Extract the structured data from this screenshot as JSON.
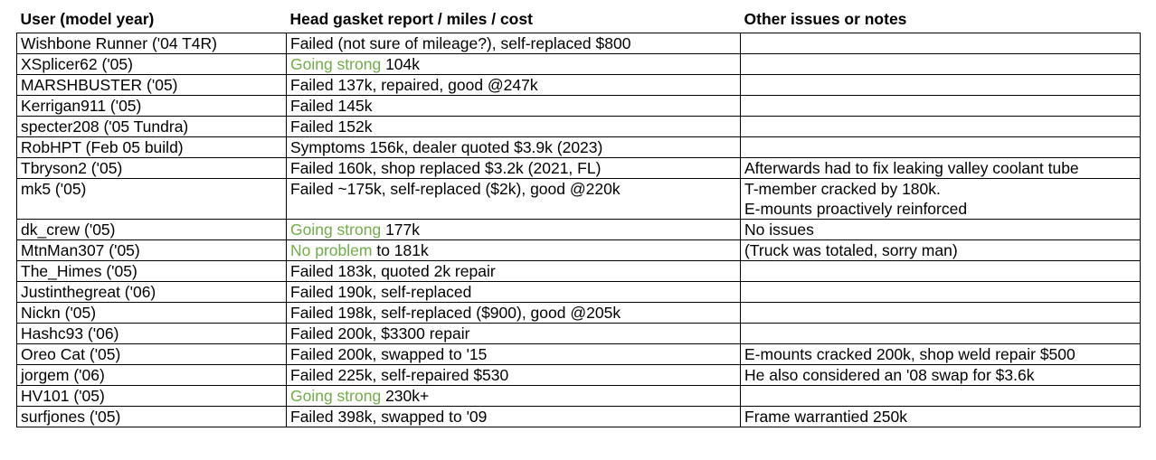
{
  "table": {
    "headers": [
      "User (model year)",
      "Head gasket report / miles / cost",
      "Other issues or notes"
    ],
    "rows": [
      {
        "user": "Wishbone Runner ('04 T4R)",
        "report_good": "",
        "report": "Failed (not sure of mileage?), self-replaced $800",
        "notes": []
      },
      {
        "user": "XSplicer62 ('05)",
        "report_good": "Going strong",
        "report": " 104k",
        "notes": []
      },
      {
        "user": "MARSHBUSTER ('05)",
        "report_good": "",
        "report": "Failed 137k, repaired, good @247k",
        "notes": []
      },
      {
        "user": "Kerrigan911 ('05)",
        "report_good": "",
        "report": "Failed 145k",
        "notes": []
      },
      {
        "user": "specter208 ('05 Tundra)",
        "report_good": "",
        "report": "Failed 152k",
        "notes": []
      },
      {
        "user": "RobHPT (Feb 05 build)",
        "report_good": "",
        "report": "Symptoms 156k, dealer quoted $3.9k (2023)",
        "notes": []
      },
      {
        "user": "Tbryson2 ('05)",
        "report_good": "",
        "report": "Failed 160k, shop replaced $3.2k (2021, FL)",
        "notes": [
          "Afterwards had to fix leaking valley coolant tube"
        ]
      },
      {
        "user": "mk5 ('05)",
        "report_good": "",
        "report": "Failed ~175k, self-replaced ($2k), good @220k",
        "notes": [
          "T-member cracked by 180k.",
          "E-mounts proactively reinforced"
        ]
      },
      {
        "user": "dk_crew ('05)",
        "report_good": "Going strong",
        "report": " 177k",
        "notes": [
          "No issues"
        ]
      },
      {
        "user": "MtnMan307 ('05)",
        "report_good": "No problem",
        "report": " to 181k",
        "notes": [
          "(Truck was totaled, sorry man)"
        ]
      },
      {
        "user": "The_Himes ('05)",
        "report_good": "",
        "report": "Failed 183k, quoted 2k repair",
        "notes": []
      },
      {
        "user": "Justinthegreat ('06)",
        "report_good": "",
        "report": "Failed 190k, self-replaced",
        "notes": []
      },
      {
        "user": "Nickn ('05)",
        "report_good": "",
        "report": "Failed 198k, self-replaced ($900), good @205k",
        "notes": []
      },
      {
        "user": "Hashc93 ('06)",
        "report_good": "",
        "report": "Failed 200k, $3300 repair",
        "notes": []
      },
      {
        "user": "Oreo Cat ('05)",
        "report_good": "",
        "report": "Failed 200k, swapped to '15",
        "notes": [
          "E-mounts cracked 200k, shop weld repair $500"
        ]
      },
      {
        "user": "jorgem ('06)",
        "report_good": "",
        "report": "Failed 225k, self-repaired $530",
        "notes": [
          "He also considered an '08 swap for $3.6k"
        ]
      },
      {
        "user": "HV101 ('05)",
        "report_good": "Going strong",
        "report": " 230k+",
        "notes": []
      },
      {
        "user": "surfjones ('05)",
        "report_good": "",
        "report": "Failed 398k, swapped to '09",
        "notes": [
          "Frame warrantied 250k"
        ]
      }
    ]
  },
  "colors": {
    "positive_text": "#70ad47",
    "text": "#000000",
    "border": "#000000"
  }
}
